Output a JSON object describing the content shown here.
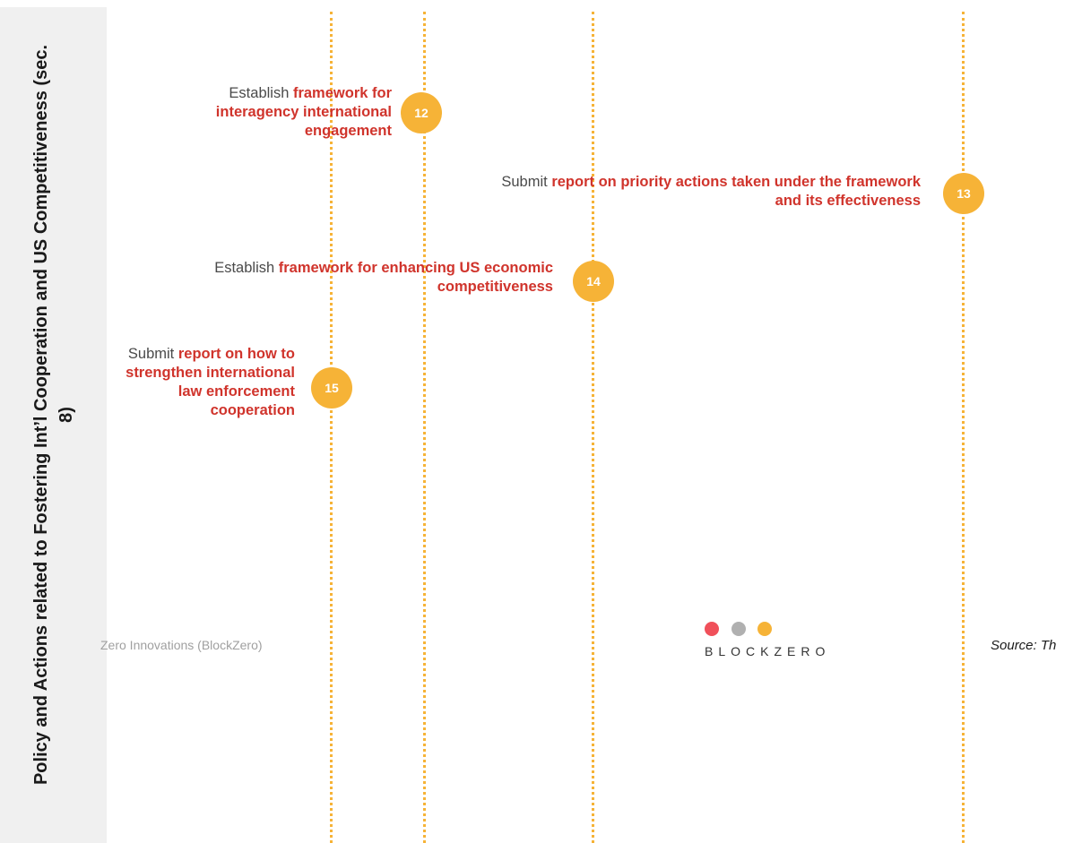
{
  "side_panel": {
    "title": "Policy and Actions related to Fostering Int’l Cooperation and US Competitiveness (sec. 8)"
  },
  "milestones": [
    {
      "number": "12",
      "verb": "Establish",
      "highlight": "framework for interagency international engagement"
    },
    {
      "number": "13",
      "verb": "Submit",
      "highlight": "report on priority actions taken under the framework and its effectiveness"
    },
    {
      "number": "14",
      "verb": "Establish",
      "highlight": "framework for enhancing US economic competitiveness"
    },
    {
      "number": "15",
      "verb": "Submit",
      "highlight": "report on how to strengthen international law enforcement cooperation"
    }
  ],
  "footer": {
    "left_text": "Zero Innovations (BlockZero)",
    "source_text": "Source: Th"
  },
  "logo": {
    "wordmark": "BLOCKZERO",
    "dot_colors": [
      "#f0505a",
      "#b0b0b0",
      "#f6b337"
    ]
  },
  "colors": {
    "accent": "#f6b337",
    "highlight_text": "#d0342c",
    "plain_text": "#4a4a4a"
  }
}
